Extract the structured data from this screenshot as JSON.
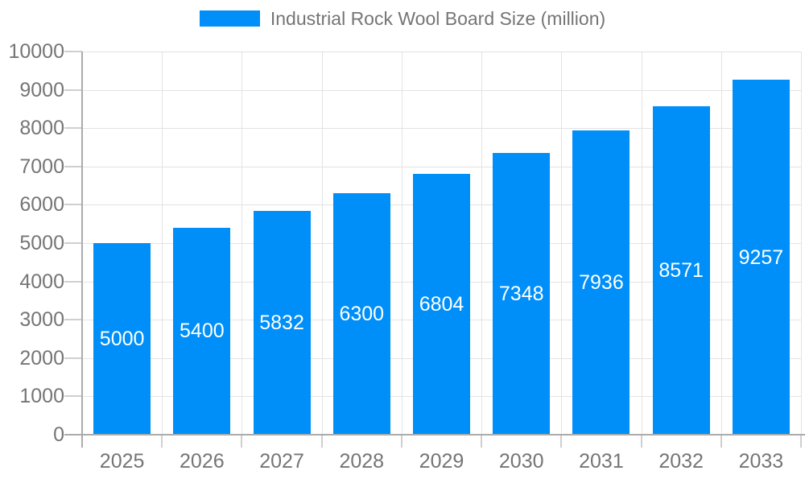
{
  "legend": {
    "position": "top"
  },
  "chart_data": {
    "type": "bar",
    "title": "Industrial Rock Wool Board Size (million)",
    "series_name": "Industrial Rock Wool Board Size (million)",
    "categories": [
      "2025",
      "2026",
      "2027",
      "2028",
      "2029",
      "2030",
      "2031",
      "2032",
      "2033"
    ],
    "values": [
      5000,
      5400,
      5832,
      6300,
      6804,
      7348,
      7936,
      8571,
      9257
    ],
    "xlabel": "",
    "ylabel": "",
    "ylim": [
      0,
      10000
    ],
    "yticks": [
      0,
      1000,
      2000,
      3000,
      4000,
      5000,
      6000,
      7000,
      8000,
      9000,
      10000
    ],
    "grid": true,
    "legend_position": "top",
    "value_label_position": "inside-center",
    "colors": {
      "bar": "#008ff8",
      "value_label": "#ffffff",
      "axis_text": "#757575",
      "axis_line": "#ababab",
      "tick": "#cfcfcf",
      "gridline": "#e3e3e3",
      "background": "#ffffff"
    }
  }
}
